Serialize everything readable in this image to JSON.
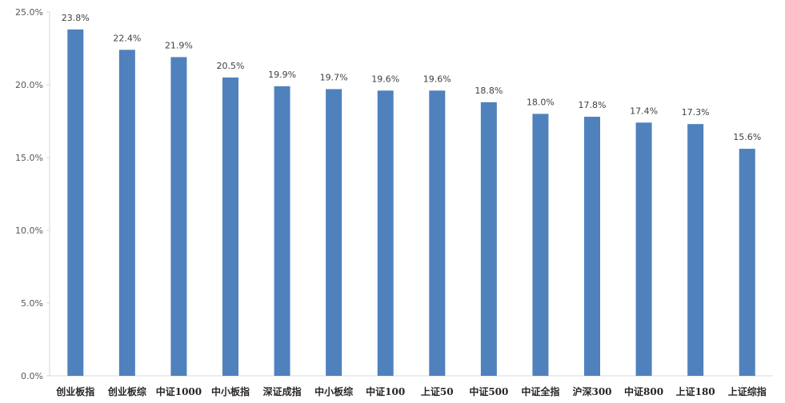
{
  "chart_data": {
    "type": "bar",
    "title": "",
    "xlabel": "",
    "ylabel": "",
    "categories": [
      "创业板指",
      "创业板综",
      "中证1000",
      "中小板指",
      "深证成指",
      "中小板综",
      "中证100",
      "上证50",
      "中证500",
      "中证全指",
      "沪深300",
      "中证800",
      "上证180",
      "上证综指"
    ],
    "values": [
      23.8,
      22.4,
      21.9,
      20.5,
      19.9,
      19.7,
      19.6,
      19.6,
      18.8,
      18.0,
      17.8,
      17.4,
      17.3,
      15.6
    ],
    "data_labels": [
      "23.8%",
      "22.4%",
      "21.9%",
      "20.5%",
      "19.9%",
      "19.7%",
      "19.6%",
      "19.6%",
      "18.8%",
      "18.0%",
      "17.8%",
      "17.4%",
      "17.3%",
      "15.6%"
    ],
    "ylim": [
      0,
      25
    ],
    "yticks": [
      0,
      5,
      10,
      15,
      20,
      25
    ],
    "ytick_labels": [
      "0.0%",
      "5.0%",
      "10.0%",
      "15.0%",
      "20.0%",
      "25.0%"
    ],
    "grid": false,
    "legend": "none",
    "bar_color": "#4f81bd",
    "axis_color": "#d9d9d9"
  }
}
